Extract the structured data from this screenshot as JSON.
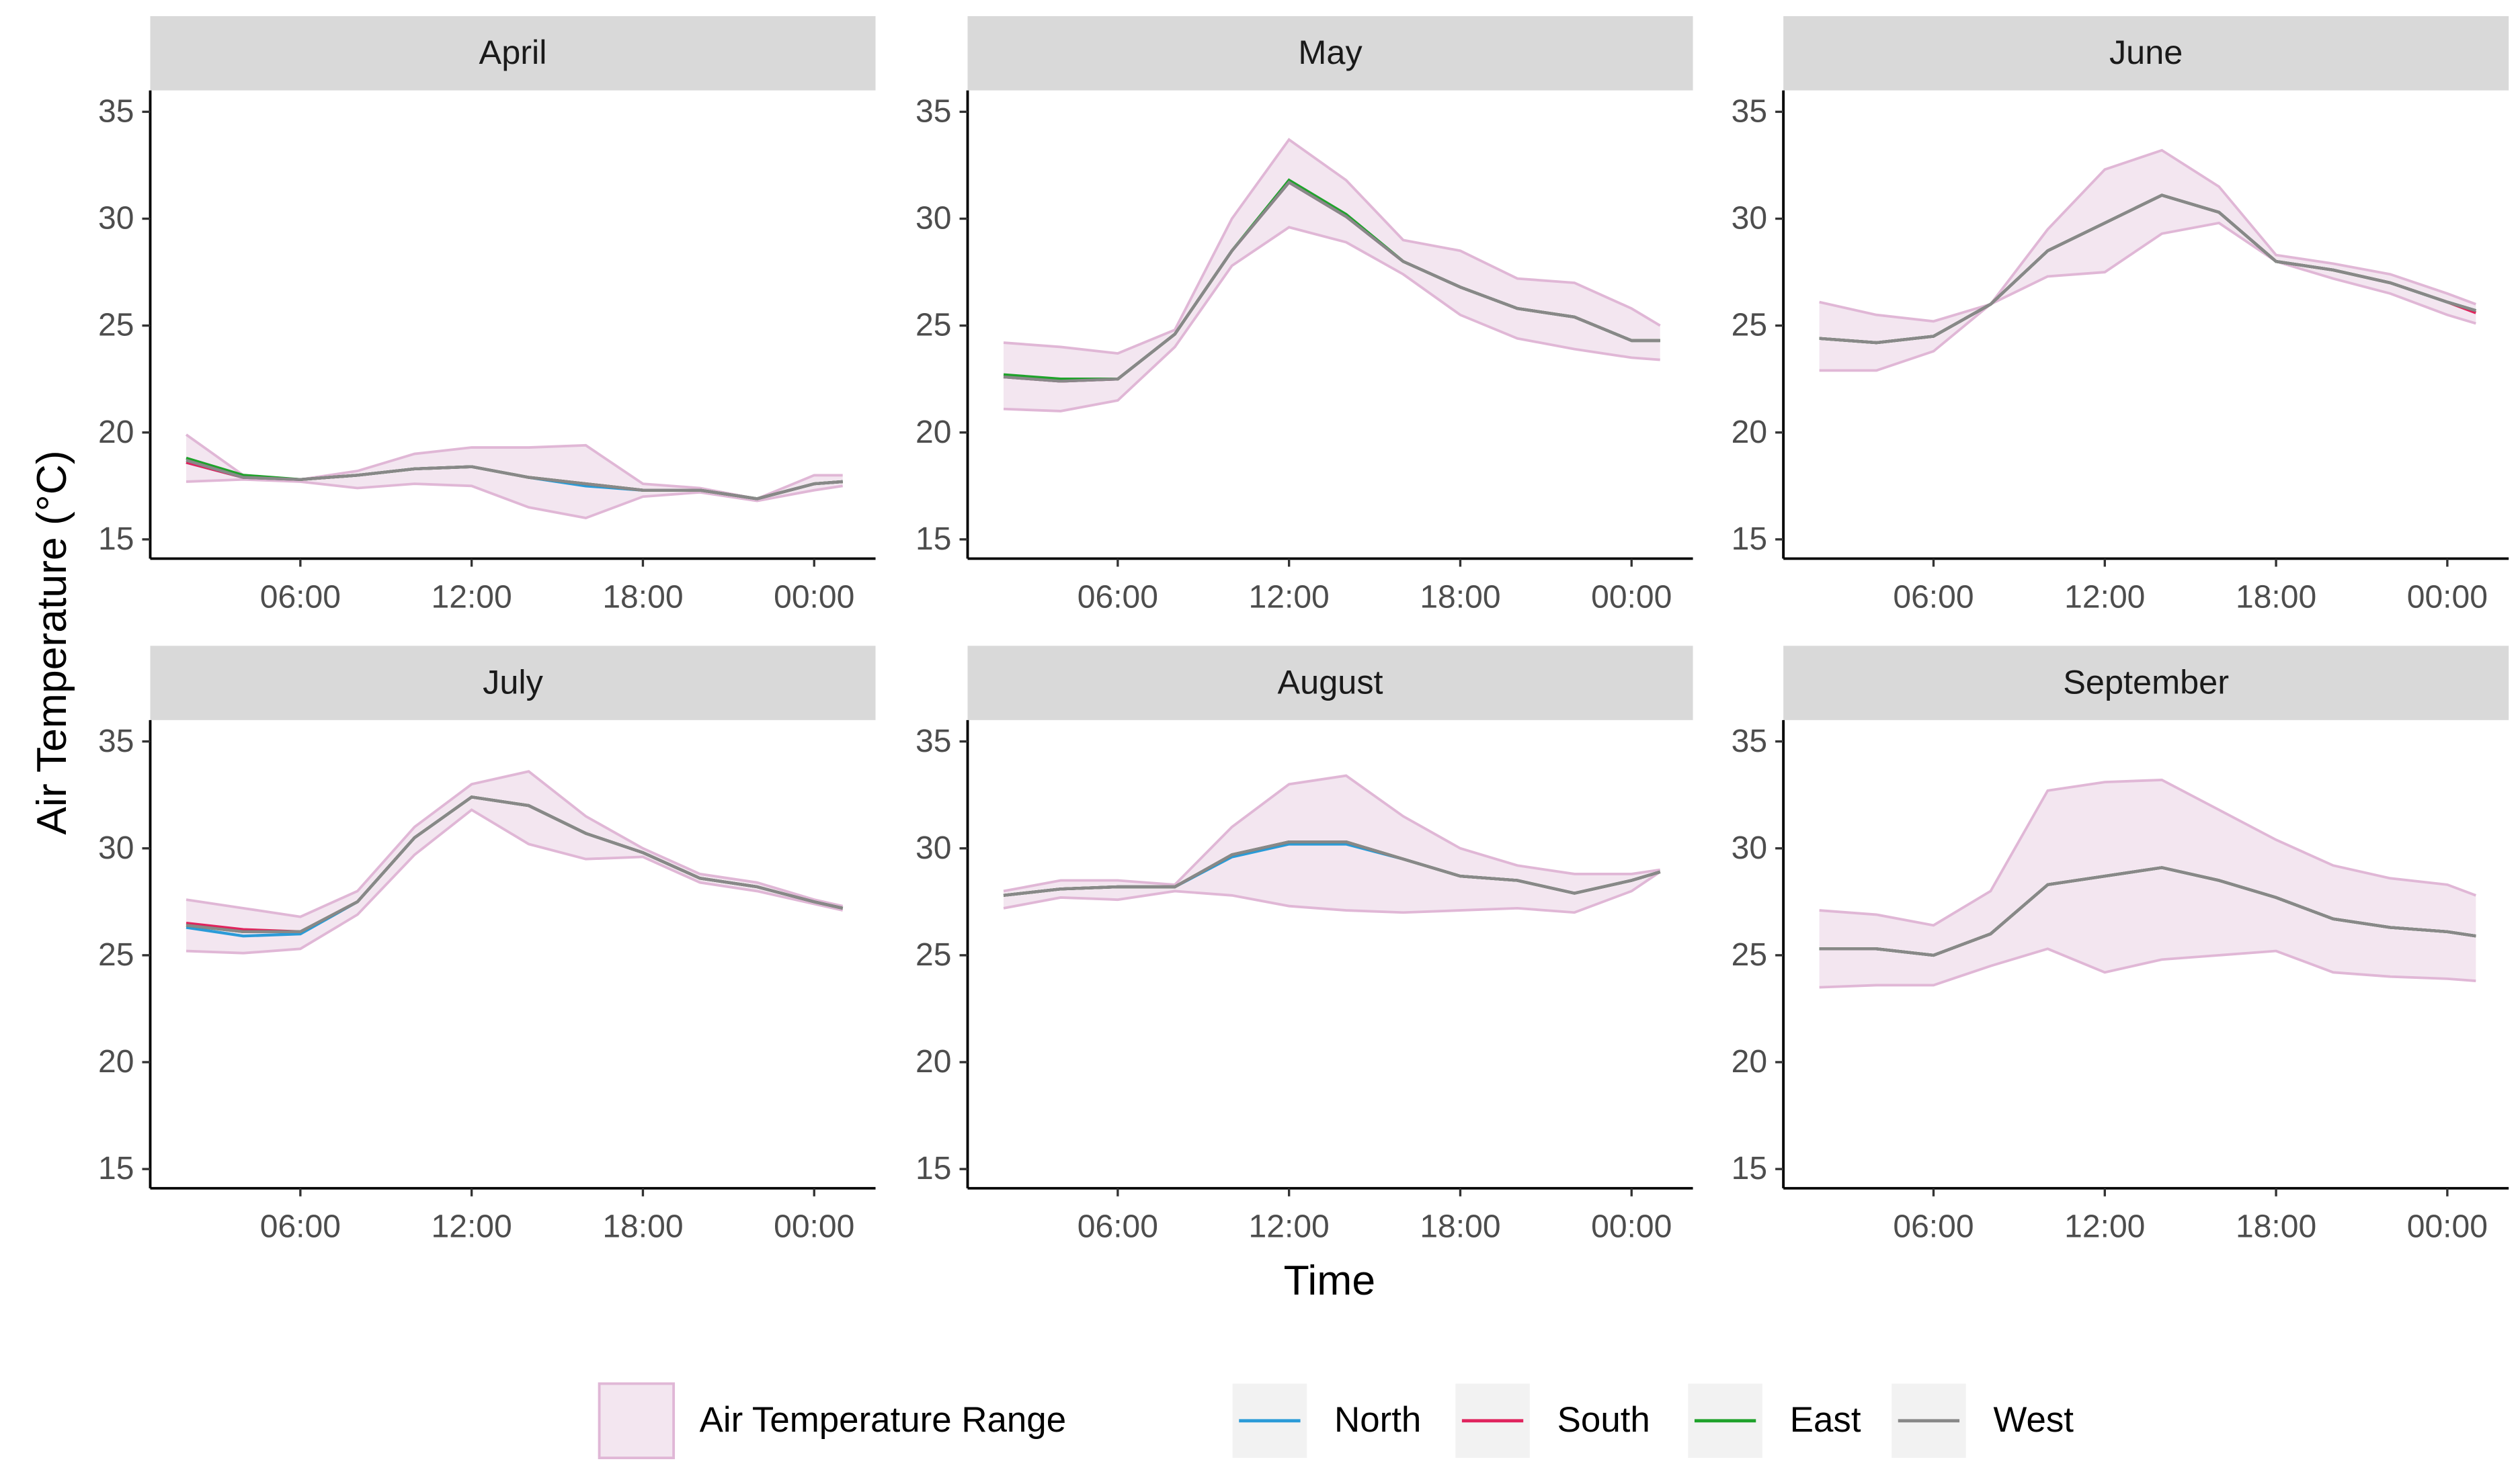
{
  "chart_data": {
    "type": "line",
    "xlabel": "Time",
    "ylabel": "Air Temperature (°C)",
    "xlim": [
      0.74,
      26.15
    ],
    "xticks": [
      {
        "value": 6,
        "label": "06:00"
      },
      {
        "value": 12,
        "label": "12:00"
      },
      {
        "value": 18,
        "label": "18:00"
      },
      {
        "value": 24,
        "label": "00:00"
      }
    ],
    "ylim": [
      14.1,
      36
    ],
    "yticks": [
      15,
      20,
      25,
      30,
      35
    ],
    "range_name": "Air Temperature Range",
    "range_color": "#f3e6f0",
    "range_edge": "#e0b7d6",
    "series": [
      {
        "name": "North",
        "color": "#2b9bd8"
      },
      {
        "name": "South",
        "color": "#e0245e"
      },
      {
        "name": "East",
        "color": "#1fa22b"
      },
      {
        "name": "West",
        "color": "#888888"
      }
    ],
    "panels": [
      {
        "title": "April",
        "x": [
          2,
          4,
          6,
          8,
          10,
          12,
          14,
          16,
          18,
          20,
          22,
          24,
          25
        ],
        "max": [
          19.9,
          18.0,
          17.8,
          18.2,
          19.0,
          19.3,
          19.3,
          19.4,
          17.6,
          17.4,
          16.9,
          18.0,
          18.0
        ],
        "min": [
          17.7,
          17.8,
          17.7,
          17.4,
          17.6,
          17.5,
          16.5,
          16.0,
          17.0,
          17.2,
          16.8,
          17.3,
          17.5
        ],
        "values": [
          [
            18.6,
            17.9,
            17.8,
            18.0,
            18.3,
            18.4,
            17.9,
            17.5,
            17.3,
            17.3,
            16.9,
            17.6,
            17.7
          ],
          [
            18.6,
            17.9,
            17.8,
            18.0,
            18.3,
            18.4,
            17.9,
            17.6,
            17.3,
            17.3,
            16.9,
            17.6,
            17.7
          ],
          [
            18.8,
            18.0,
            17.8,
            18.0,
            18.3,
            18.4,
            17.9,
            17.6,
            17.3,
            17.3,
            16.9,
            17.6,
            17.7
          ],
          [
            18.7,
            17.9,
            17.8,
            18.0,
            18.3,
            18.4,
            17.9,
            17.6,
            17.3,
            17.3,
            16.9,
            17.6,
            17.7
          ]
        ]
      },
      {
        "title": "May",
        "x": [
          2,
          4,
          6,
          8,
          10,
          12,
          14,
          16,
          18,
          20,
          22,
          24,
          25
        ],
        "max": [
          24.2,
          24.0,
          23.7,
          24.8,
          30.0,
          33.7,
          31.8,
          29.0,
          28.5,
          27.2,
          27.0,
          25.8,
          25.0
        ],
        "min": [
          21.1,
          21.0,
          21.5,
          24.0,
          27.8,
          29.6,
          28.9,
          27.4,
          25.5,
          24.4,
          23.9,
          23.5,
          23.4
        ],
        "values": [
          [
            22.6,
            22.4,
            22.5,
            24.6,
            28.5,
            31.7,
            30.1,
            28.0,
            26.8,
            25.8,
            25.4,
            24.3,
            24.3
          ],
          [
            22.6,
            22.4,
            22.5,
            24.6,
            28.5,
            31.7,
            30.1,
            28.0,
            26.8,
            25.8,
            25.4,
            24.3,
            24.3
          ],
          [
            22.7,
            22.5,
            22.5,
            24.6,
            28.5,
            31.8,
            30.2,
            28.0,
            26.8,
            25.8,
            25.4,
            24.3,
            24.3
          ],
          [
            22.6,
            22.4,
            22.5,
            24.6,
            28.5,
            31.7,
            30.1,
            28.0,
            26.8,
            25.8,
            25.4,
            24.3,
            24.3
          ]
        ]
      },
      {
        "title": "June",
        "x": [
          2,
          4,
          6,
          8,
          10,
          12,
          14,
          16,
          18,
          20,
          22,
          24,
          25
        ],
        "max": [
          26.1,
          25.5,
          25.2,
          26.0,
          29.5,
          32.3,
          33.2,
          31.5,
          28.3,
          27.9,
          27.4,
          26.5,
          26.0
        ],
        "min": [
          22.9,
          22.9,
          23.8,
          26.0,
          27.3,
          27.5,
          29.3,
          29.8,
          28.0,
          27.2,
          26.5,
          25.5,
          25.1
        ],
        "values": [
          [
            24.4,
            24.2,
            24.5,
            26.0,
            28.5,
            29.8,
            31.1,
            30.3,
            28.0,
            27.6,
            27.0,
            26.1,
            25.7
          ],
          [
            24.4,
            24.2,
            24.5,
            26.0,
            28.5,
            29.8,
            31.1,
            30.3,
            28.0,
            27.6,
            27.0,
            26.1,
            25.6
          ],
          [
            24.4,
            24.2,
            24.5,
            26.0,
            28.5,
            29.8,
            31.1,
            30.3,
            28.0,
            27.6,
            27.0,
            26.1,
            25.7
          ],
          [
            24.4,
            24.2,
            24.5,
            26.0,
            28.5,
            29.8,
            31.1,
            30.3,
            28.0,
            27.6,
            27.0,
            26.1,
            25.7
          ]
        ]
      },
      {
        "title": "July",
        "x": [
          2,
          4,
          6,
          8,
          10,
          12,
          14,
          16,
          18,
          20,
          22,
          24,
          25
        ],
        "max": [
          27.6,
          27.2,
          26.8,
          28.0,
          31.0,
          33.0,
          33.6,
          31.5,
          30.0,
          28.8,
          28.4,
          27.6,
          27.3
        ],
        "min": [
          25.2,
          25.1,
          25.3,
          26.9,
          29.7,
          31.8,
          30.2,
          29.5,
          29.6,
          28.4,
          28.0,
          27.4,
          27.1
        ],
        "values": [
          [
            26.3,
            25.9,
            26.0,
            27.5,
            30.5,
            32.4,
            32.0,
            30.7,
            29.8,
            28.6,
            28.2,
            27.5,
            27.2
          ],
          [
            26.5,
            26.2,
            26.1,
            27.5,
            30.5,
            32.4,
            32.0,
            30.7,
            29.8,
            28.6,
            28.2,
            27.5,
            27.2
          ],
          [
            26.4,
            26.1,
            26.1,
            27.5,
            30.5,
            32.4,
            32.0,
            30.7,
            29.8,
            28.6,
            28.2,
            27.5,
            27.2
          ],
          [
            26.4,
            26.1,
            26.1,
            27.5,
            30.5,
            32.4,
            32.0,
            30.7,
            29.8,
            28.6,
            28.2,
            27.5,
            27.2
          ]
        ]
      },
      {
        "title": "August",
        "x": [
          2,
          4,
          6,
          8,
          10,
          12,
          14,
          16,
          18,
          20,
          22,
          24,
          25
        ],
        "max": [
          28.0,
          28.5,
          28.5,
          28.3,
          31.0,
          33.0,
          33.4,
          31.5,
          30.0,
          29.2,
          28.8,
          28.8,
          29.0
        ],
        "min": [
          27.2,
          27.7,
          27.6,
          28.0,
          27.8,
          27.3,
          27.1,
          27.0,
          27.1,
          27.2,
          27.0,
          28.0,
          28.9
        ],
        "values": [
          [
            27.8,
            28.1,
            28.2,
            28.2,
            29.6,
            30.2,
            30.2,
            29.5,
            28.7,
            28.5,
            27.9,
            28.5,
            28.9
          ],
          [
            27.8,
            28.1,
            28.2,
            28.2,
            29.7,
            30.3,
            30.3,
            29.5,
            28.7,
            28.5,
            27.9,
            28.5,
            28.9
          ],
          [
            27.8,
            28.1,
            28.2,
            28.2,
            29.7,
            30.3,
            30.3,
            29.5,
            28.7,
            28.5,
            27.9,
            28.5,
            28.9
          ],
          [
            27.8,
            28.1,
            28.2,
            28.2,
            29.7,
            30.3,
            30.3,
            29.5,
            28.7,
            28.5,
            27.9,
            28.5,
            28.9
          ]
        ]
      },
      {
        "title": "September",
        "x": [
          2,
          4,
          6,
          8,
          10,
          12,
          14,
          16,
          18,
          20,
          22,
          24,
          25
        ],
        "max": [
          27.1,
          26.9,
          26.4,
          28.0,
          32.7,
          33.1,
          33.2,
          31.8,
          30.4,
          29.2,
          28.6,
          28.3,
          27.8
        ],
        "min": [
          23.5,
          23.6,
          23.6,
          24.5,
          25.3,
          24.2,
          24.8,
          25.0,
          25.2,
          24.2,
          24.0,
          23.9,
          23.8
        ],
        "values": [
          [
            25.3,
            25.3,
            25.0,
            26.0,
            28.3,
            28.7,
            29.1,
            28.5,
            27.7,
            26.7,
            26.3,
            26.1,
            25.9
          ],
          [
            25.3,
            25.3,
            25.0,
            26.0,
            28.3,
            28.7,
            29.1,
            28.5,
            27.7,
            26.7,
            26.3,
            26.1,
            25.9
          ],
          [
            25.3,
            25.3,
            25.0,
            26.0,
            28.3,
            28.7,
            29.1,
            28.5,
            27.7,
            26.7,
            26.3,
            26.1,
            25.9
          ],
          [
            25.3,
            25.3,
            25.0,
            26.0,
            28.3,
            28.7,
            29.1,
            28.5,
            27.7,
            26.7,
            26.3,
            26.1,
            25.9
          ]
        ]
      }
    ]
  }
}
